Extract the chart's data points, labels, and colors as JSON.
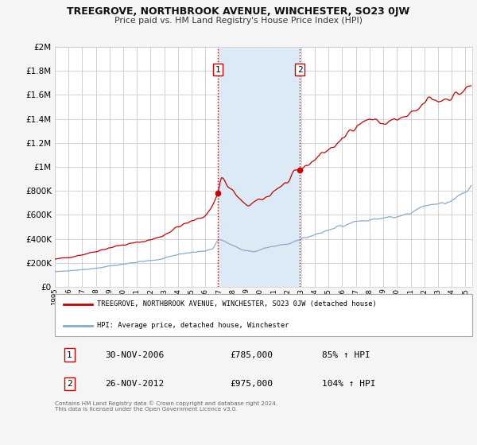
{
  "title": "TREEGROVE, NORTHBROOK AVENUE, WINCHESTER, SO23 0JW",
  "subtitle": "Price paid vs. HM Land Registry's House Price Index (HPI)",
  "ylim": [
    0,
    2000000
  ],
  "yticks": [
    0,
    200000,
    400000,
    600000,
    800000,
    1000000,
    1200000,
    1400000,
    1600000,
    1800000,
    2000000
  ],
  "ytick_labels": [
    "£0",
    "£200K",
    "£400K",
    "£600K",
    "£800K",
    "£1M",
    "£1.2M",
    "£1.4M",
    "£1.6M",
    "£1.8M",
    "£2M"
  ],
  "xlim_start": 1995.0,
  "xlim_end": 2025.5,
  "background_color": "#f5f5f5",
  "plot_bg_color": "#ffffff",
  "grid_color": "#cccccc",
  "red_line_color": "#cc0000",
  "blue_line_color": "#88aacc",
  "shaded_region_start": 2006.917,
  "shaded_region_end": 2012.9,
  "shaded_color": "#dceaf5",
  "vline_color": "#cc0000",
  "marker1_x": 2006.917,
  "marker1_y": 785000,
  "marker2_x": 2012.9,
  "marker2_y": 975000,
  "annotation1": {
    "label": "1",
    "date": "30-NOV-2006",
    "price": "£785,000",
    "hpi": "85% ↑ HPI"
  },
  "annotation2": {
    "label": "2",
    "date": "26-NOV-2012",
    "price": "£975,000",
    "hpi": "104% ↑ HPI"
  },
  "legend_red_label": "TREEGROVE, NORTHBROOK AVENUE, WINCHESTER, SO23 0JW (detached house)",
  "legend_blue_label": "HPI: Average price, detached house, Winchester",
  "footer": "Contains HM Land Registry data © Crown copyright and database right 2024.\nThis data is licensed under the Open Government Licence v3.0."
}
